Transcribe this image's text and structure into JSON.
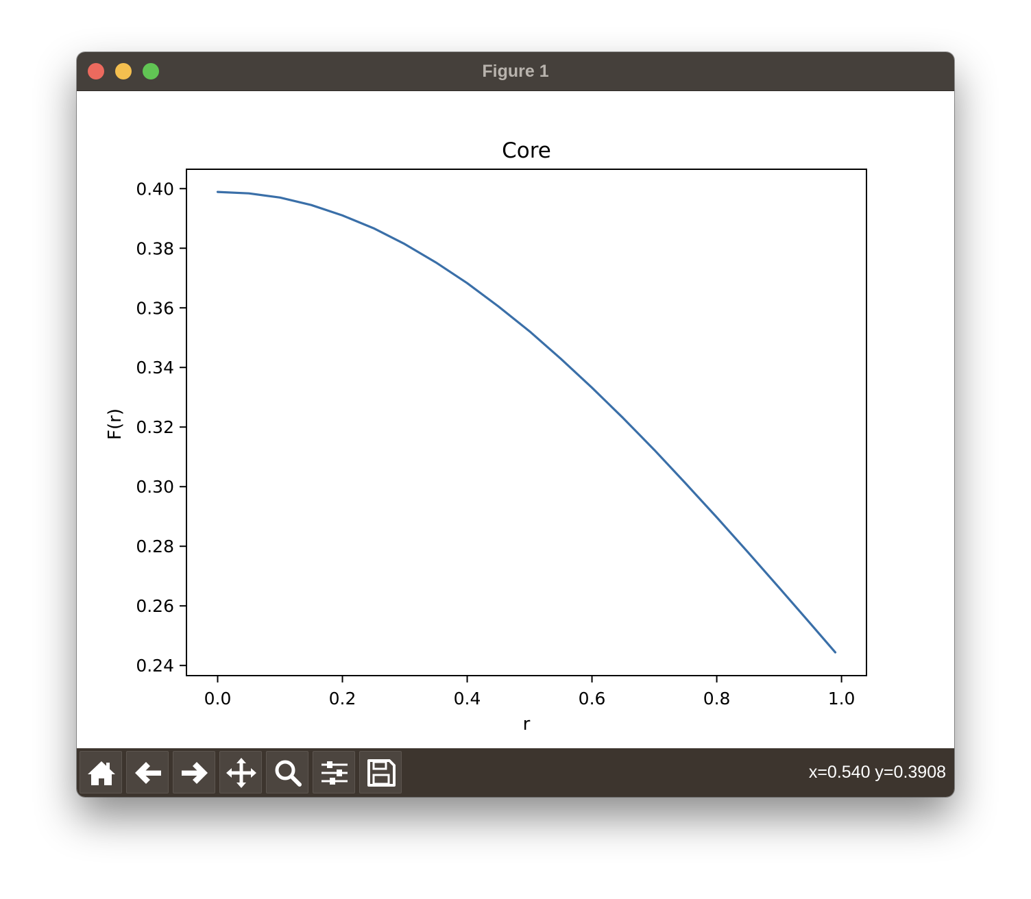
{
  "window": {
    "title": "Figure 1"
  },
  "toolbar": {
    "buttons": [
      {
        "name": "home-button",
        "icon": "home-icon"
      },
      {
        "name": "back-button",
        "icon": "arrow-left-icon"
      },
      {
        "name": "forward-button",
        "icon": "arrow-right-icon"
      },
      {
        "name": "pan-button",
        "icon": "move-icon"
      },
      {
        "name": "zoom-button",
        "icon": "search-icon"
      },
      {
        "name": "configure-subplots-button",
        "icon": "sliders-icon"
      },
      {
        "name": "save-button",
        "icon": "floppy-disk-icon"
      }
    ],
    "coordinates": "x=0.540 y=0.3908"
  },
  "colors": {
    "titlebar": "#45403b",
    "toolbar": "#3d352e",
    "line": "#3a6fa8"
  },
  "chart_data": {
    "type": "line",
    "title": "Core",
    "xlabel": "r",
    "ylabel": "F(r)",
    "xlim": [
      -0.05,
      1.04
    ],
    "ylim": [
      0.2366,
      0.4065
    ],
    "xticks": [
      0.0,
      0.2,
      0.4,
      0.6,
      0.8,
      1.0
    ],
    "xtick_labels": [
      "0.0",
      "0.2",
      "0.4",
      "0.6",
      "0.8",
      "1.0"
    ],
    "yticks": [
      0.24,
      0.26,
      0.28,
      0.3,
      0.32,
      0.34,
      0.36,
      0.38,
      0.4
    ],
    "ytick_labels": [
      "0.24",
      "0.26",
      "0.28",
      "0.30",
      "0.32",
      "0.34",
      "0.36",
      "0.38",
      "0.40"
    ],
    "grid": false,
    "series": [
      {
        "x": [
          0.0,
          0.05,
          0.1,
          0.15,
          0.2,
          0.25,
          0.3,
          0.35,
          0.4,
          0.45,
          0.5,
          0.55,
          0.6,
          0.65,
          0.7,
          0.75,
          0.8,
          0.85,
          0.9,
          0.95,
          0.99
        ],
        "y": [
          0.3989,
          0.3984,
          0.397,
          0.3945,
          0.391,
          0.3867,
          0.3814,
          0.3752,
          0.3683,
          0.3605,
          0.3521,
          0.3429,
          0.3332,
          0.323,
          0.3123,
          0.3011,
          0.2897,
          0.278,
          0.2661,
          0.2541,
          0.2444
        ]
      }
    ]
  }
}
